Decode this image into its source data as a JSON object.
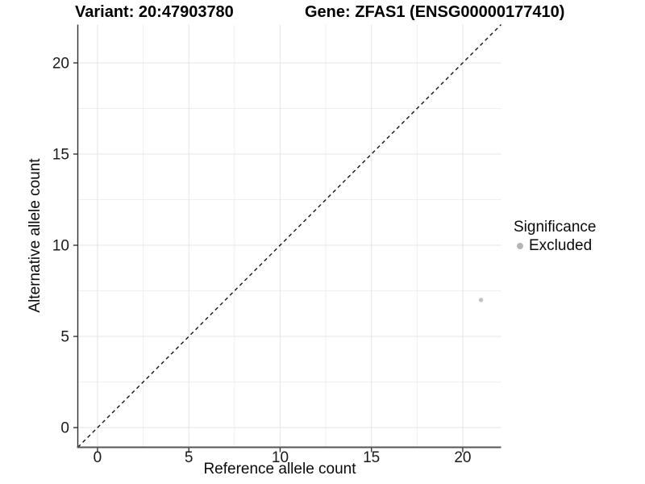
{
  "header": {
    "variant_title": "Variant: 20:47903780",
    "gene_title": "Gene: ZFAS1 (ENSG00000177410)"
  },
  "legend": {
    "title": "Significance",
    "items": [
      {
        "label": "Excluded",
        "color": "#b5b5b5"
      }
    ]
  },
  "chart_data": {
    "type": "scatter",
    "titles": [
      "Variant: 20:47903780",
      "Gene: ZFAS1 (ENSG00000177410)"
    ],
    "xlabel": "Reference allele count",
    "ylabel": "Alternative allele count",
    "xlim": [
      -1.08,
      22.1
    ],
    "ylim": [
      -1.08,
      22.1
    ],
    "x_major_ticks": [
      0,
      5,
      10,
      15,
      20
    ],
    "y_major_ticks": [
      0,
      5,
      10,
      15,
      20
    ],
    "x_minor_ticks": [
      2.5,
      7.5,
      12.5,
      17.5
    ],
    "y_minor_ticks": [
      2.5,
      7.5,
      12.5,
      17.5
    ],
    "grid": {
      "major_color": "#e4e4e4",
      "minor_color": "#efefef",
      "background": "#ffffff"
    },
    "identity_line": {
      "style": "dashed",
      "color": "#141414",
      "slope": 1,
      "intercept": 0
    },
    "series": [
      {
        "name": "Excluded",
        "color": "#c1c1c1",
        "point_radius": 2.7,
        "points": [
          [
            21,
            7
          ]
        ]
      }
    ],
    "legend_position": "right"
  },
  "style": {
    "y_axis_line_color": "#2e2e2e",
    "x_axis_line_color": "#555555",
    "tick_color": "#333333",
    "tick_label_color": "#1a1a1a"
  }
}
